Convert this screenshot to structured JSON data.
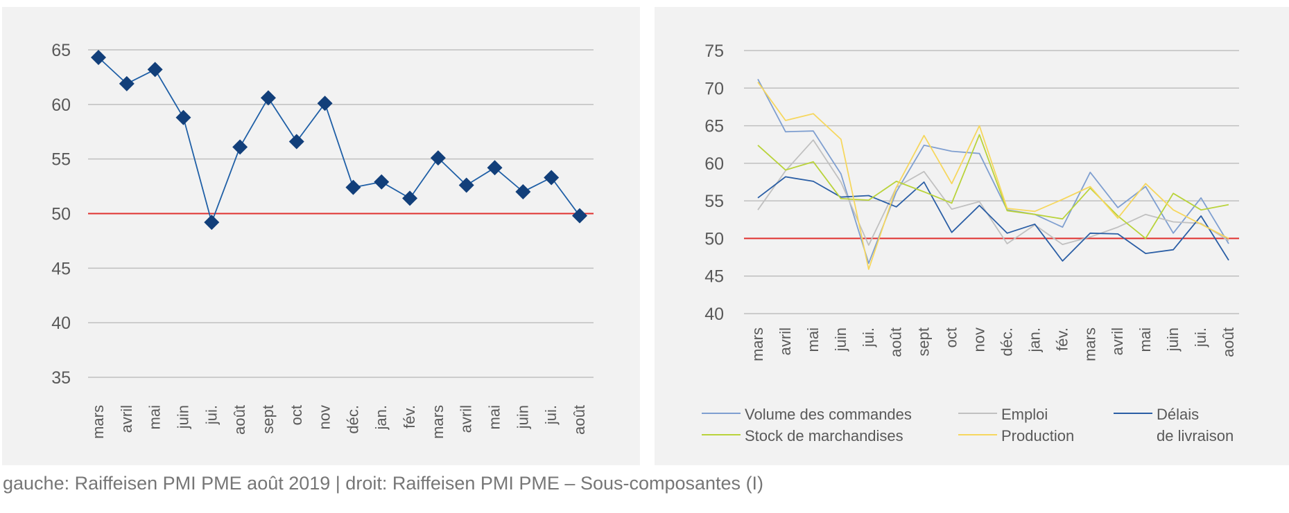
{
  "caption": "gauche: Raiffeisen PMI PME août 2019 | droit: Raiffeisen PMI PME – Sous-composantes (I)",
  "colors": {
    "panel_bg": "#f2f2f2",
    "grid": "#bfbfbf",
    "threshold": "#e0302e",
    "tick_text": "#595959",
    "marker": "#123f7a"
  },
  "chart_data": [
    {
      "type": "line",
      "categories": [
        "mars",
        "avril",
        "mai",
        "juin",
        "jui.",
        "août",
        "sept",
        "oct",
        "nov",
        "déc.",
        "jan.",
        "fév.",
        "mars",
        "avril",
        "mai",
        "juin",
        "jui.",
        "août"
      ],
      "series": [
        {
          "color": "#1f5fa6",
          "marker": "diamond",
          "values": [
            64.3,
            61.9,
            63.2,
            58.8,
            49.2,
            56.1,
            60.6,
            56.6,
            60.1,
            52.4,
            52.9,
            51.4,
            55.1,
            52.6,
            54.2,
            52.0,
            53.3,
            49.8
          ]
        }
      ],
      "threshold": 50,
      "ylim": [
        35,
        65
      ],
      "yticks": [
        65,
        60,
        55,
        50,
        45,
        40,
        35
      ],
      "grid": true,
      "legend": "none"
    },
    {
      "type": "line",
      "categories": [
        "mars",
        "avril",
        "mai",
        "juin",
        "jui.",
        "août",
        "sept",
        "oct",
        "nov",
        "déc.",
        "jan.",
        "fév.",
        "mars",
        "avril",
        "mai",
        "juin",
        "jui.",
        "août"
      ],
      "series": [
        {
          "name": "Volume des commandes",
          "color": "#7f9fd0",
          "values": [
            71.2,
            64.2,
            64.3,
            58.6,
            46.7,
            56.2,
            62.4,
            61.6,
            61.3,
            53.8,
            53.2,
            51.5,
            58.8,
            54.1,
            56.9,
            50.7,
            55.4,
            49.3
          ]
        },
        {
          "name": "Emploi",
          "color": "#c0c0c0",
          "values": [
            53.8,
            59.0,
            63.1,
            57.5,
            49.1,
            56.8,
            58.9,
            53.9,
            54.9,
            49.3,
            51.8,
            49.2,
            50.2,
            51.5,
            53.2,
            52.2,
            52.0,
            49.7
          ]
        },
        {
          "name": "Délais de livraison",
          "color": "#2a5ea5",
          "values": [
            55.4,
            58.2,
            57.6,
            55.5,
            55.7,
            54.2,
            57.5,
            50.8,
            54.4,
            50.7,
            51.9,
            47.0,
            50.7,
            50.6,
            48.0,
            48.5,
            53.0,
            47.1
          ]
        },
        {
          "name": "Stock de marchandises",
          "color": "#b9d33a",
          "values": [
            62.4,
            59.1,
            60.2,
            55.3,
            55.1,
            57.6,
            56.2,
            54.7,
            63.8,
            53.7,
            53.2,
            52.6,
            56.7,
            53.0,
            50.0,
            56.0,
            53.8,
            54.5
          ]
        },
        {
          "name": "Production",
          "color": "#f6d75e",
          "values": [
            70.8,
            65.7,
            66.6,
            63.2,
            45.9,
            56.8,
            63.7,
            57.3,
            65.0,
            54.0,
            53.6,
            55.2,
            56.9,
            52.7,
            57.3,
            53.8,
            51.9,
            50.0
          ]
        }
      ],
      "legend_labels": {
        "volume": "Volume des commandes",
        "emploi": "Emploi",
        "delais_1": "Délais",
        "delais_2": "de livraison",
        "stock": "Stock de marchandises",
        "production": "Production"
      },
      "threshold": 50,
      "ylim": [
        40,
        75
      ],
      "yticks": [
        75,
        70,
        65,
        60,
        55,
        50,
        45,
        40
      ],
      "grid": true,
      "legend": "bottom"
    }
  ]
}
